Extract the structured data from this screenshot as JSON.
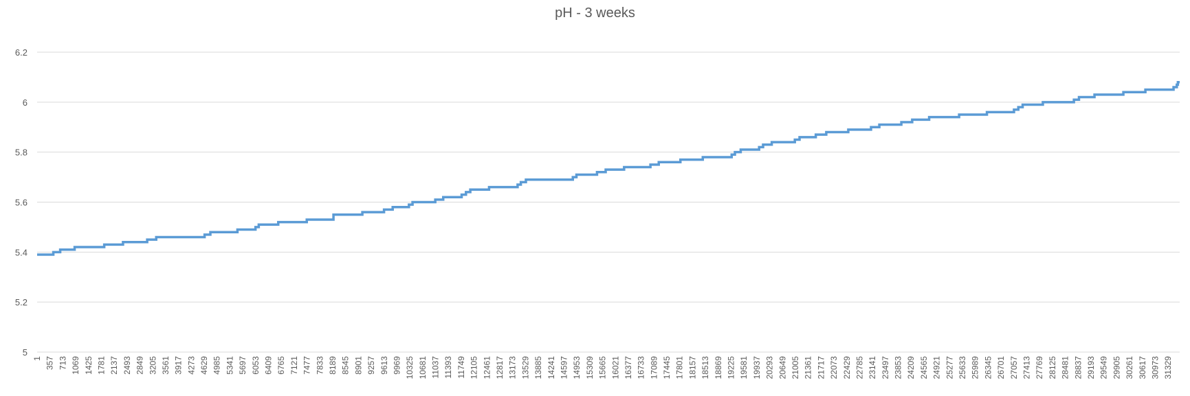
{
  "chart_data": {
    "type": "line",
    "title": "pH - 3 weeks",
    "xlabel": "",
    "ylabel": "",
    "ylim": [
      5,
      6.2
    ],
    "yticks": [
      "5",
      "5.2",
      "5.4",
      "5.6",
      "5.8",
      "6",
      "6.2"
    ],
    "grid": true,
    "legend": "none",
    "line_color": "#5b9bd5",
    "xlim": [
      1,
      31650
    ],
    "xticks": [
      "1",
      "357",
      "713",
      "1069",
      "1425",
      "1781",
      "2137",
      "2493",
      "2849",
      "3205",
      "3561",
      "3917",
      "4273",
      "4629",
      "4985",
      "5341",
      "5697",
      "6053",
      "6409",
      "6765",
      "7121",
      "7477",
      "7833",
      "8189",
      "8545",
      "8901",
      "9257",
      "9613",
      "9969",
      "10325",
      "10681",
      "11037",
      "11393",
      "11749",
      "12105",
      "12461",
      "12817",
      "13173",
      "13529",
      "13885",
      "14241",
      "14597",
      "14953",
      "15309",
      "15665",
      "16021",
      "16377",
      "16733",
      "17089",
      "17445",
      "17801",
      "18157",
      "18513",
      "18869",
      "19225",
      "19581",
      "19937",
      "20293",
      "20649",
      "21005",
      "21361",
      "21717",
      "22073",
      "22429",
      "22785",
      "23141",
      "23497",
      "23853",
      "24209",
      "24565",
      "24921",
      "25277",
      "25633",
      "25989",
      "26345",
      "26701",
      "27057",
      "27413",
      "27769",
      "28125",
      "28481",
      "28837",
      "29193",
      "29549",
      "29905",
      "30261",
      "30617",
      "30973",
      "31329"
    ],
    "series": [
      {
        "steps": [
          [
            1,
            5.39
          ],
          [
            450,
            5.4
          ],
          [
            640,
            5.41
          ],
          [
            1040,
            5.42
          ],
          [
            1860,
            5.43
          ],
          [
            2380,
            5.44
          ],
          [
            3050,
            5.45
          ],
          [
            3300,
            5.46
          ],
          [
            4640,
            5.47
          ],
          [
            4800,
            5.48
          ],
          [
            5550,
            5.49
          ],
          [
            6050,
            5.5
          ],
          [
            6140,
            5.51
          ],
          [
            6680,
            5.52
          ],
          [
            7470,
            5.53
          ],
          [
            8210,
            5.55
          ],
          [
            9010,
            5.56
          ],
          [
            9610,
            5.57
          ],
          [
            9850,
            5.58
          ],
          [
            10300,
            5.59
          ],
          [
            10400,
            5.6
          ],
          [
            11030,
            5.61
          ],
          [
            11250,
            5.62
          ],
          [
            11760,
            5.63
          ],
          [
            11880,
            5.64
          ],
          [
            12000,
            5.65
          ],
          [
            12520,
            5.66
          ],
          [
            13310,
            5.67
          ],
          [
            13400,
            5.68
          ],
          [
            13540,
            5.69
          ],
          [
            14840,
            5.7
          ],
          [
            14940,
            5.71
          ],
          [
            15510,
            5.72
          ],
          [
            15750,
            5.73
          ],
          [
            16260,
            5.74
          ],
          [
            16990,
            5.75
          ],
          [
            17220,
            5.76
          ],
          [
            17820,
            5.77
          ],
          [
            18440,
            5.78
          ],
          [
            19240,
            5.79
          ],
          [
            19330,
            5.8
          ],
          [
            19490,
            5.81
          ],
          [
            20000,
            5.82
          ],
          [
            20110,
            5.83
          ],
          [
            20350,
            5.84
          ],
          [
            20990,
            5.85
          ],
          [
            21120,
            5.86
          ],
          [
            21570,
            5.87
          ],
          [
            21860,
            5.88
          ],
          [
            22470,
            5.89
          ],
          [
            23100,
            5.9
          ],
          [
            23330,
            5.91
          ],
          [
            23940,
            5.92
          ],
          [
            24240,
            5.93
          ],
          [
            24710,
            5.94
          ],
          [
            25540,
            5.95
          ],
          [
            26310,
            5.96
          ],
          [
            27060,
            5.97
          ],
          [
            27180,
            5.98
          ],
          [
            27300,
            5.99
          ],
          [
            27860,
            6.0
          ],
          [
            28720,
            6.01
          ],
          [
            28860,
            6.02
          ],
          [
            29290,
            6.03
          ],
          [
            30090,
            6.04
          ],
          [
            30700,
            6.05
          ],
          [
            31480,
            6.06
          ],
          [
            31570,
            6.07
          ],
          [
            31600,
            6.08
          ],
          [
            31650,
            6.08
          ]
        ]
      }
    ]
  }
}
